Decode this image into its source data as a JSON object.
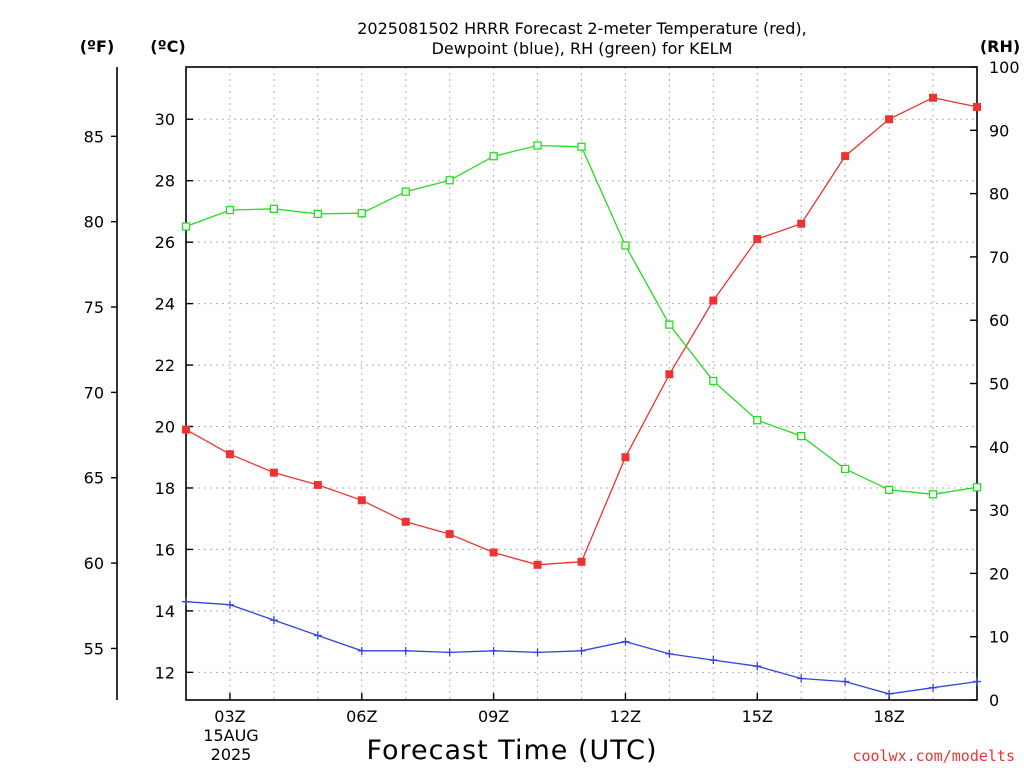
{
  "title_line1": "2025081502 HRRR Forecast 2-meter Temperature (red),",
  "title_line2": "Dewpoint (blue), RH (green) for KELM",
  "xlabel": "Forecast Time (UTC)",
  "credit": "coolwx.com/modelts",
  "units": {
    "fahrenheit": "(ºF)",
    "celsius": "(ºC)",
    "rh": "(RH)"
  },
  "date_label": {
    "day": "15AUG",
    "year": "2025"
  },
  "colors": {
    "temperature": "#ee3333",
    "dewpoint": "#3344dd",
    "rh": "#22dd22",
    "credit": "#ee3333"
  },
  "chart_data": {
    "type": "line",
    "title": "2025081502 HRRR Forecast 2-meter Temperature (red), Dewpoint (blue), RH (green) for KELM",
    "xlabel": "Forecast Time (UTC)",
    "x": [
      "02Z",
      "03Z",
      "04Z",
      "05Z",
      "06Z",
      "07Z",
      "08Z",
      "09Z",
      "10Z",
      "11Z",
      "12Z",
      "13Z",
      "14Z",
      "15Z",
      "16Z",
      "17Z",
      "18Z",
      "19Z",
      "20Z"
    ],
    "x_hours": [
      2,
      3,
      4,
      5,
      6,
      7,
      8,
      9,
      10,
      11,
      12,
      13,
      14,
      15,
      16,
      17,
      18,
      19,
      20
    ],
    "xlim": [
      2,
      20
    ],
    "x_ticks": [
      {
        "hour": 3,
        "label": "03Z"
      },
      {
        "hour": 6,
        "label": "06Z"
      },
      {
        "hour": 9,
        "label": "09Z"
      },
      {
        "hour": 12,
        "label": "12Z"
      },
      {
        "hour": 15,
        "label": "15Z"
      },
      {
        "hour": 18,
        "label": "18Z"
      }
    ],
    "axes": {
      "celsius": {
        "label": "(ºC)",
        "lim": [
          11.1,
          31.7
        ],
        "ticks": [
          12,
          14,
          16,
          18,
          20,
          22,
          24,
          26,
          28,
          30
        ]
      },
      "fahrenheit": {
        "label": "(ºF)",
        "ticks": [
          55,
          60,
          65,
          70,
          75,
          80,
          85
        ]
      },
      "rh": {
        "label": "(RH)",
        "lim": [
          0,
          100
        ],
        "ticks": [
          0,
          10,
          20,
          30,
          40,
          50,
          60,
          70,
          80,
          90,
          100
        ]
      }
    },
    "grid": true,
    "series": [
      {
        "name": "Temperature",
        "axis": "celsius",
        "color": "#ee3333",
        "marker": "filled-square",
        "values": [
          19.9,
          19.1,
          18.5,
          18.1,
          17.6,
          16.9,
          16.5,
          15.9,
          15.5,
          15.6,
          19.0,
          21.7,
          24.1,
          26.1,
          26.6,
          28.8,
          30.0,
          30.7,
          30.4
        ]
      },
      {
        "name": "Dewpoint",
        "axis": "celsius",
        "color": "#3344dd",
        "marker": "plus",
        "values": [
          14.3,
          14.2,
          13.7,
          13.2,
          12.7,
          12.7,
          12.65,
          12.7,
          12.65,
          12.7,
          13.0,
          12.6,
          12.4,
          12.2,
          11.8,
          11.7,
          11.3,
          11.5,
          11.7
        ]
      },
      {
        "name": "RH",
        "axis": "rh",
        "color": "#22dd22",
        "marker": "open-square",
        "values": [
          74.8,
          77.4,
          77.6,
          76.8,
          76.9,
          80.3,
          82.1,
          85.9,
          87.6,
          87.4,
          71.8,
          59.3,
          50.4,
          44.2,
          41.7,
          36.5,
          33.2,
          32.5,
          33.6
        ]
      }
    ]
  }
}
